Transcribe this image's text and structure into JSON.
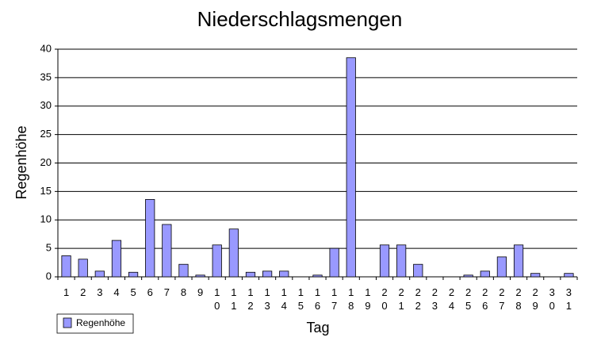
{
  "chart_data": {
    "type": "bar",
    "title": "Niederschlagsmengen",
    "x_label": "Tag",
    "y_label": "Regenhöhe",
    "categories": [
      "1",
      "2",
      "3",
      "4",
      "5",
      "6",
      "7",
      "8",
      "9",
      "10",
      "11",
      "12",
      "13",
      "14",
      "15",
      "16",
      "17",
      "18",
      "19",
      "20",
      "21",
      "22",
      "23",
      "24",
      "25",
      "26",
      "27",
      "28",
      "29",
      "30",
      "31"
    ],
    "series": [
      {
        "name": "Regenhöhe",
        "color": "#9999ff",
        "values": [
          3.7,
          3.1,
          1.0,
          6.4,
          0.8,
          13.6,
          9.2,
          2.2,
          0.3,
          5.6,
          8.4,
          0.8,
          1.0,
          1.0,
          0,
          0.3,
          5.0,
          38.5,
          0,
          5.6,
          5.6,
          2.2,
          0,
          0,
          0.3,
          1.0,
          3.5,
          5.6,
          0.6,
          0,
          0.6
        ]
      }
    ],
    "ylim": [
      0,
      40
    ],
    "yticks": [
      0,
      5,
      10,
      15,
      20,
      25,
      30,
      35,
      40
    ],
    "grid": true,
    "legend": "bottom-left"
  }
}
